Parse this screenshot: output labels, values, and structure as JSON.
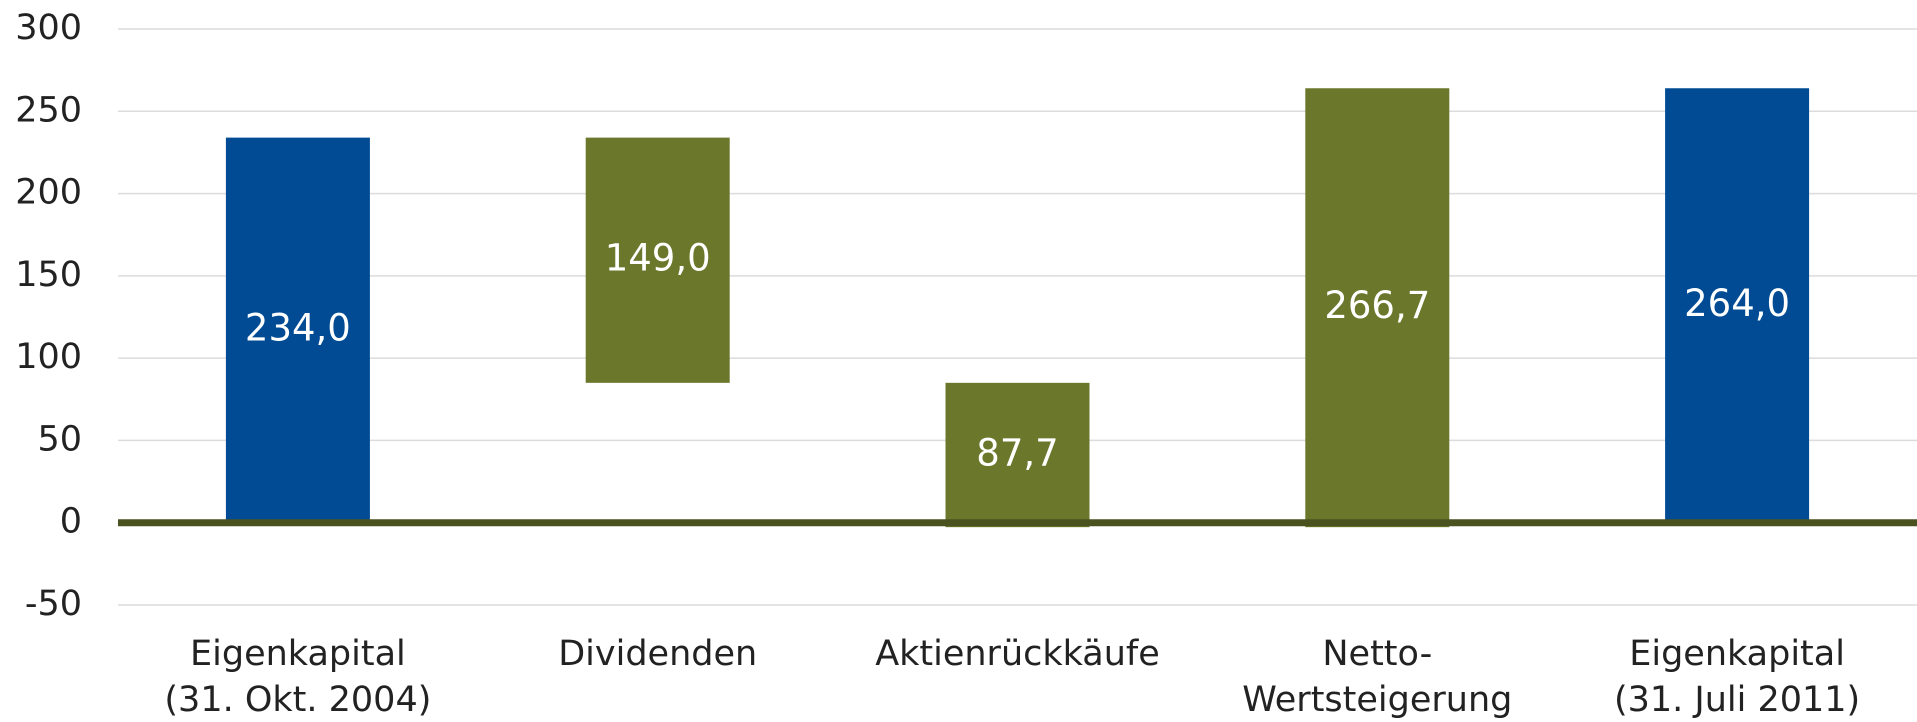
{
  "chart_data": {
    "type": "waterfall",
    "categories": [
      [
        "Eigenkapital",
        "(31. Okt. 2004)"
      ],
      [
        "Dividenden"
      ],
      [
        "Aktienrückkäufe"
      ],
      [
        "Netto-",
        "Wertsteigerung"
      ],
      [
        "Eigenkapital",
        "(31. Juli 2011)"
      ]
    ],
    "values": [
      234.0,
      149.0,
      87.7,
      266.7,
      264.0
    ],
    "value_labels": [
      "234,0",
      "149,0",
      "87,7",
      "266,7",
      "264,0"
    ],
    "measure": [
      "total",
      "decrease",
      "decrease",
      "increase",
      "total"
    ],
    "colors": [
      "#004b93",
      "#6b772b",
      "#6b772b",
      "#6b772b",
      "#004b93"
    ],
    "ylim": [
      -50,
      300
    ],
    "yticks": [
      -50,
      0,
      50,
      100,
      150,
      200,
      250,
      300
    ],
    "grid": true
  }
}
